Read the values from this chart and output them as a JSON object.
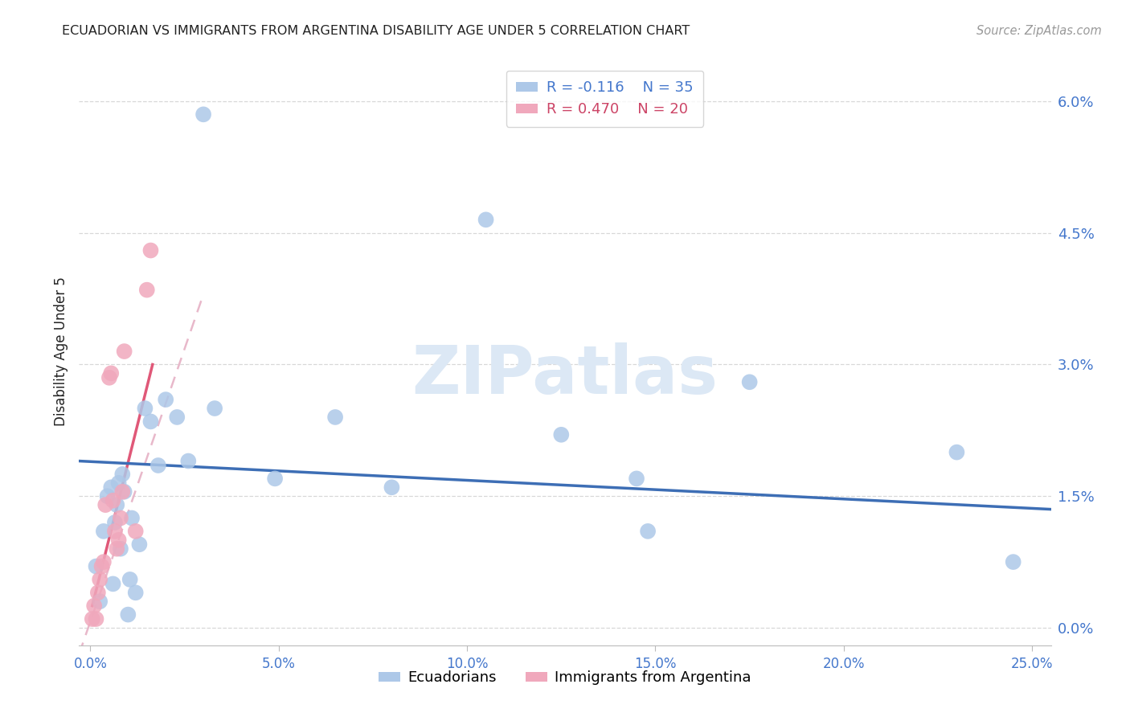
{
  "title": "ECUADORIAN VS IMMIGRANTS FROM ARGENTINA DISABILITY AGE UNDER 5 CORRELATION CHART",
  "source": "Source: ZipAtlas.com",
  "xlabel_vals": [
    0.0,
    5.0,
    10.0,
    15.0,
    20.0,
    25.0
  ],
  "ylabel_vals": [
    0.0,
    1.5,
    3.0,
    4.5,
    6.0
  ],
  "xlim": [
    -0.3,
    25.5
  ],
  "ylim": [
    -0.2,
    6.5
  ],
  "legend_blue_r": "R = -0.116",
  "legend_blue_n": "N = 35",
  "legend_pink_r": "R = 0.470",
  "legend_pink_n": "N = 20",
  "blue_scatter_x": [
    0.15,
    0.25,
    0.35,
    0.45,
    0.55,
    0.6,
    0.65,
    0.7,
    0.75,
    0.8,
    0.85,
    0.9,
    1.0,
    1.05,
    1.1,
    1.2,
    1.3,
    1.45,
    1.6,
    1.8,
    2.0,
    2.3,
    2.6,
    3.0,
    3.3,
    4.9,
    6.5,
    8.0,
    10.5,
    12.5,
    14.5,
    14.8,
    17.5,
    23.0,
    24.5
  ],
  "blue_scatter_y": [
    0.7,
    0.3,
    1.1,
    1.5,
    1.6,
    0.5,
    1.2,
    1.4,
    1.65,
    0.9,
    1.75,
    1.55,
    0.15,
    0.55,
    1.25,
    0.4,
    0.95,
    2.5,
    2.35,
    1.85,
    2.6,
    2.4,
    1.9,
    5.85,
    2.5,
    1.7,
    2.4,
    1.6,
    4.65,
    2.2,
    1.7,
    1.1,
    2.8,
    2.0,
    0.75
  ],
  "pink_scatter_x": [
    0.05,
    0.1,
    0.15,
    0.2,
    0.25,
    0.3,
    0.35,
    0.4,
    0.5,
    0.55,
    0.6,
    0.65,
    0.7,
    0.75,
    0.8,
    0.85,
    0.9,
    1.2,
    1.5,
    1.6
  ],
  "pink_scatter_y": [
    0.1,
    0.25,
    0.1,
    0.4,
    0.55,
    0.7,
    0.75,
    1.4,
    2.85,
    2.9,
    1.45,
    1.1,
    0.9,
    1.0,
    1.25,
    1.55,
    3.15,
    1.1,
    3.85,
    4.3
  ],
  "blue_line_x0": -0.3,
  "blue_line_x1": 25.5,
  "blue_line_y0": 1.9,
  "blue_line_y1": 1.35,
  "pink_solid_x0": 0.05,
  "pink_solid_x1": 1.65,
  "pink_solid_y0": 0.25,
  "pink_solid_y1": 3.0,
  "pink_dash_x0": -0.3,
  "pink_dash_x1": 3.0,
  "pink_dash_y0": -0.3,
  "pink_dash_y1": 3.8,
  "blue_scatter_color": "#adc8e8",
  "pink_scatter_color": "#f0a8bc",
  "blue_line_color": "#3d6eb5",
  "pink_line_color": "#e05878",
  "pink_dash_color": "#e8b8ca",
  "background_color": "#ffffff",
  "grid_color": "#d8d8d8",
  "title_color": "#222222",
  "axis_tick_color": "#4477cc",
  "watermark_color": "#dce8f5",
  "ylabel": "Disability Age Under 5"
}
